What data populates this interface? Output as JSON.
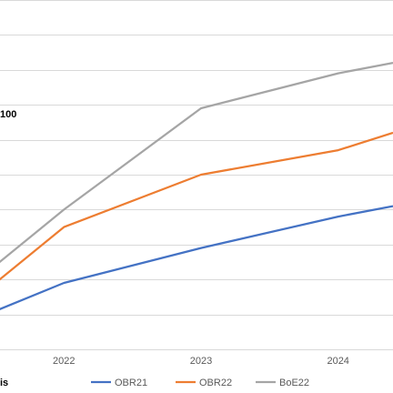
{
  "chart_data": {
    "type": "line",
    "x": [
      2021,
      2022,
      2023,
      2024,
      2024.4
    ],
    "x_tick_labels": [
      "2022",
      "2023",
      "2024"
    ],
    "x_tick_values": [
      2022,
      2023,
      2024
    ],
    "xlim": [
      2021.5,
      2024.4
    ],
    "ylim": [
      0,
      10
    ],
    "gridlines_y": [
      0,
      1,
      2,
      3,
      4,
      5,
      6,
      7,
      8,
      9,
      10
    ],
    "grid": true,
    "legend_position": "bottom",
    "partial_texts": {
      "left_fragment_upper": "100",
      "left_fragment_lower": "is"
    },
    "series": [
      {
        "name": "OBR21",
        "color": "#4472c4",
        "x": [
          2021.5,
          2022,
          2023,
          2024,
          2024.4
        ],
        "values": [
          1.1,
          1.9,
          2.9,
          3.8,
          4.1
        ]
      },
      {
        "name": "OBR22",
        "color": "#ed7d31",
        "x": [
          2021.5,
          2022,
          2023,
          2024,
          2024.4
        ],
        "values": [
          1.9,
          3.5,
          5.0,
          5.7,
          6.2
        ]
      },
      {
        "name": "BoE22",
        "color": "#a5a5a5",
        "x": [
          2021.5,
          2022,
          2023,
          2024,
          2024.4
        ],
        "values": [
          2.4,
          4.0,
          6.9,
          7.9,
          8.2
        ]
      }
    ]
  }
}
